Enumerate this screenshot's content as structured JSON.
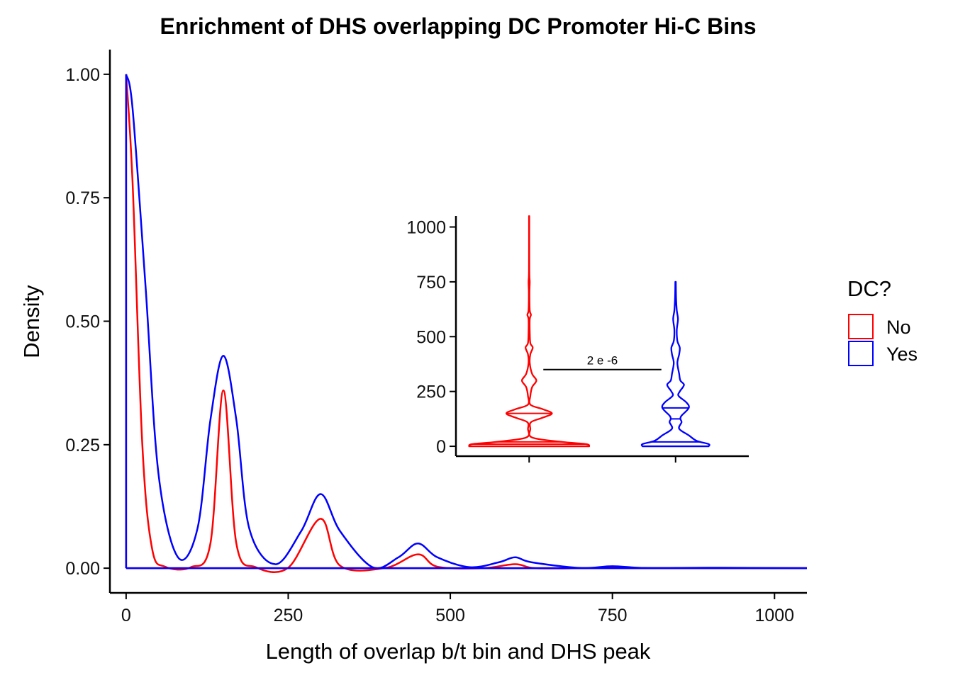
{
  "chart_data": [
    {
      "type": "line",
      "subtype": "density",
      "title": "Enrichment of DHS overlapping DC Promoter Hi-C Bins",
      "xlabel": "Length of overlap b/t bin and DHS peak",
      "ylabel": "Density",
      "xlim": [
        -25,
        1050
      ],
      "ylim": [
        -0.05,
        1.05
      ],
      "xticks": [
        "0",
        "250",
        "500",
        "750",
        "1000"
      ],
      "yticks": [
        "0.00",
        "0.25",
        "0.50",
        "0.75",
        "1.00"
      ],
      "grid": false,
      "legend": {
        "title": "DC?",
        "position": "right"
      },
      "series": [
        {
          "name": "No",
          "color": "#ff0000",
          "x": [
            0,
            10,
            25,
            40,
            60,
            100,
            130,
            150,
            170,
            200,
            250,
            300,
            330,
            400,
            450,
            480,
            550,
            600,
            630,
            700,
            750,
            800,
            1050
          ],
          "y": [
            1.0,
            0.78,
            0.25,
            0.04,
            0.003,
            0.002,
            0.05,
            0.36,
            0.05,
            0.002,
            0.001,
            0.1,
            0.005,
            0.0005,
            0.028,
            0.003,
            0.0,
            0.008,
            0.0,
            0.0,
            0.001,
            0.0,
            0.0
          ]
        },
        {
          "name": "Yes",
          "color": "#0000ff",
          "x": [
            0,
            10,
            30,
            50,
            80,
            110,
            130,
            150,
            170,
            190,
            230,
            270,
            300,
            330,
            380,
            420,
            450,
            480,
            530,
            575,
            600,
            625,
            700,
            750,
            800,
            900,
            1050
          ],
          "y": [
            1.0,
            0.93,
            0.57,
            0.19,
            0.022,
            0.08,
            0.3,
            0.43,
            0.3,
            0.08,
            0.008,
            0.075,
            0.15,
            0.075,
            0.002,
            0.022,
            0.05,
            0.022,
            0.002,
            0.012,
            0.022,
            0.012,
            0.0005,
            0.004,
            0.0005,
            0.001,
            0.0
          ]
        }
      ]
    },
    {
      "type": "violin",
      "placement": "inset",
      "ylim": [
        -45,
        1050
      ],
      "yticks": [
        "0",
        "250",
        "500",
        "750",
        "1000"
      ],
      "groups": [
        {
          "name": "No",
          "color": "#ff0000",
          "ymax": 1050,
          "median": 10,
          "quantiles": [
            10,
            20,
            150
          ],
          "profile_y": [
            0,
            10,
            20,
            40,
            80,
            110,
            130,
            150,
            170,
            190,
            230,
            270,
            300,
            330,
            380,
            420,
            450,
            470,
            520,
            580,
            600,
            620,
            700,
            750,
            800,
            1050
          ],
          "profile_w": [
            1.0,
            0.95,
            0.55,
            0.05,
            0.02,
            0.03,
            0.22,
            0.38,
            0.22,
            0.02,
            0.02,
            0.05,
            0.12,
            0.05,
            0.01,
            0.02,
            0.06,
            0.02,
            0.01,
            0.01,
            0.03,
            0.01,
            0.005,
            0.01,
            0.003,
            0.002
          ]
        },
        {
          "name": "Yes",
          "color": "#0000ff",
          "ymax": 750,
          "median": 125,
          "quantiles": [
            20,
            125,
            175
          ],
          "profile_y": [
            0,
            10,
            25,
            50,
            80,
            110,
            125,
            140,
            175,
            200,
            230,
            250,
            280,
            300,
            330,
            380,
            420,
            450,
            480,
            530,
            580,
            620,
            680,
            750
          ],
          "profile_w": [
            0.55,
            0.55,
            0.35,
            0.22,
            0.06,
            0.1,
            0.08,
            0.1,
            0.22,
            0.18,
            0.05,
            0.07,
            0.14,
            0.08,
            0.06,
            0.03,
            0.06,
            0.07,
            0.03,
            0.02,
            0.04,
            0.02,
            0.008,
            0.004
          ]
        }
      ],
      "annotation": {
        "text": "2 e -6",
        "y": 350
      }
    }
  ]
}
